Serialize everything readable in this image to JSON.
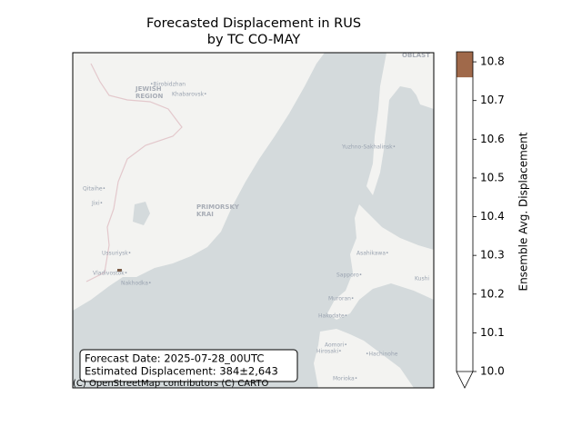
{
  "map": {
    "title": [
      "Forecasted Displacement in RUS",
      "by TC CO-MAY"
    ],
    "annotation": [
      "Forecast Date: 2025-07-28_00UTC",
      "Estimated Displacement: 384±2,643"
    ],
    "attribution": "(C) OpenStreetMap contributors (C) CARTO",
    "place_labels": [
      "JEWISH",
      "REGION",
      "•Birobidzhan",
      "Khabarovsk•",
      "PRIMORSKY",
      "KRAI",
      "Qitaihe•",
      "Jixi•",
      "Ussuriysk•",
      "Vladivostok•",
      "Nakhodka•",
      "Yuzhno-Sakhalinsk•",
      "Asahikawa•",
      "Sapporo•",
      "Muroran•",
      "Hakodate•",
      "Hirosaki•",
      "Aomori•",
      "•Hachinohe",
      "Morioka•",
      "OBLAST",
      "Kushi"
    ],
    "colorbar": {
      "label": "Ensemble Avg. Displacement",
      "lim": [
        10.0,
        10.826
      ],
      "ticks": [
        {
          "value": 10.0,
          "label": "10.0"
        },
        10.1,
        10.2,
        10.3,
        10.4,
        10.5,
        10.6,
        10.7,
        10.8
      ],
      "bands": [
        {
          "from": 10.0,
          "to": 10.76,
          "color": "#ffffff"
        },
        {
          "from": 10.76,
          "to": 10.826,
          "color": "#a0694a"
        }
      ],
      "extend": "min"
    }
  }
}
